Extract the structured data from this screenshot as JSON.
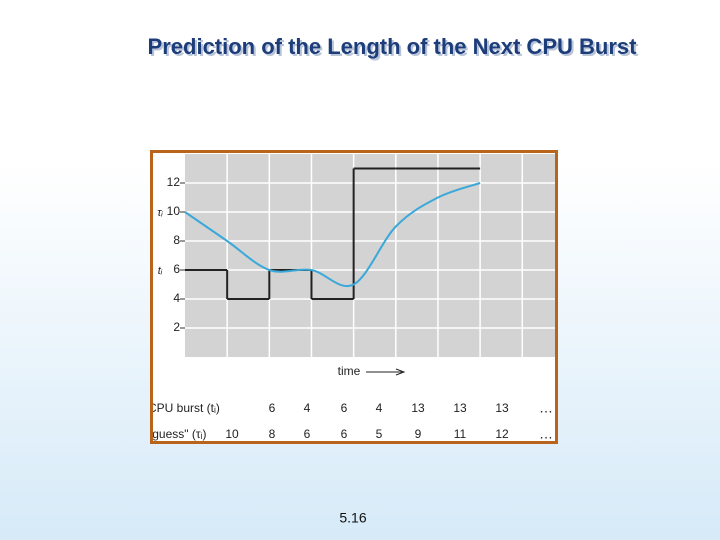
{
  "title": "Prediction of the Length of the Next CPU Burst",
  "page_number": "5.16",
  "chart_data": {
    "type": "line",
    "xlabel": "time",
    "xlim": [
      0,
      8.8
    ],
    "ylim": [
      0,
      14
    ],
    "xticks": [
      1,
      2,
      3,
      4,
      5,
      6,
      7,
      8
    ],
    "yticks": [
      2,
      4,
      6,
      8,
      10,
      12
    ],
    "grid": true,
    "series": [
      {
        "name": "tᵢ",
        "color": "#222222",
        "style": "step",
        "x": [
          0,
          1,
          2,
          3,
          4,
          5,
          6
        ],
        "values": [
          6,
          4,
          6,
          4,
          13,
          13,
          13
        ]
      },
      {
        "name": "τᵢ",
        "color": "#3aa8d8",
        "style": "smooth",
        "x": [
          0,
          1,
          2,
          3,
          4,
          5,
          6,
          7
        ],
        "values": [
          10,
          8,
          6,
          6,
          5,
          9,
          11,
          12
        ]
      }
    ],
    "table": {
      "rows": [
        {
          "label": "CPU burst (tᵢ)",
          "series": 0,
          "more": "…"
        },
        {
          "label": "\"guess\" (τᵢ)",
          "series": 1,
          "more": "…"
        }
      ]
    }
  }
}
